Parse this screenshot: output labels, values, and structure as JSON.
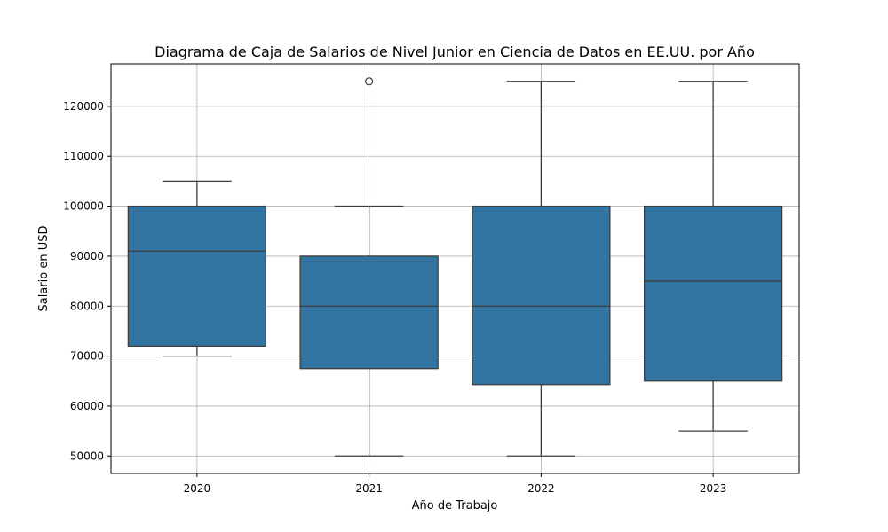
{
  "chart_data": {
    "type": "box",
    "title": "Diagrama de Caja de Salarios de Nivel Junior en Ciencia de Datos en EE.UU. por Año",
    "xlabel": "Año de Trabajo",
    "ylabel": "Salario en USD",
    "categories": [
      "2020",
      "2021",
      "2022",
      "2023"
    ],
    "ylim": [
      46500,
      128500
    ],
    "yticks": [
      50000,
      60000,
      70000,
      80000,
      90000,
      100000,
      110000,
      120000
    ],
    "grid": true,
    "boxes": [
      {
        "category": "2020",
        "whisker_low": 70000,
        "q1": 72000,
        "median": 91000,
        "q3": 100000,
        "whisker_high": 105000,
        "outliers": []
      },
      {
        "category": "2021",
        "whisker_low": 50000,
        "q1": 67500,
        "median": 80000,
        "q3": 90000,
        "whisker_high": 100000,
        "outliers": [
          125000
        ]
      },
      {
        "category": "2022",
        "whisker_low": 50000,
        "q1": 64300,
        "median": 80000,
        "q3": 100000,
        "whisker_high": 125000,
        "outliers": []
      },
      {
        "category": "2023",
        "whisker_low": 55000,
        "q1": 65000,
        "median": 85000,
        "q3": 100000,
        "whisker_high": 125000,
        "outliers": []
      }
    ],
    "colors": {
      "box": "#3274a1",
      "line": "#3d3d3d",
      "grid": "#b0b0b0"
    }
  }
}
